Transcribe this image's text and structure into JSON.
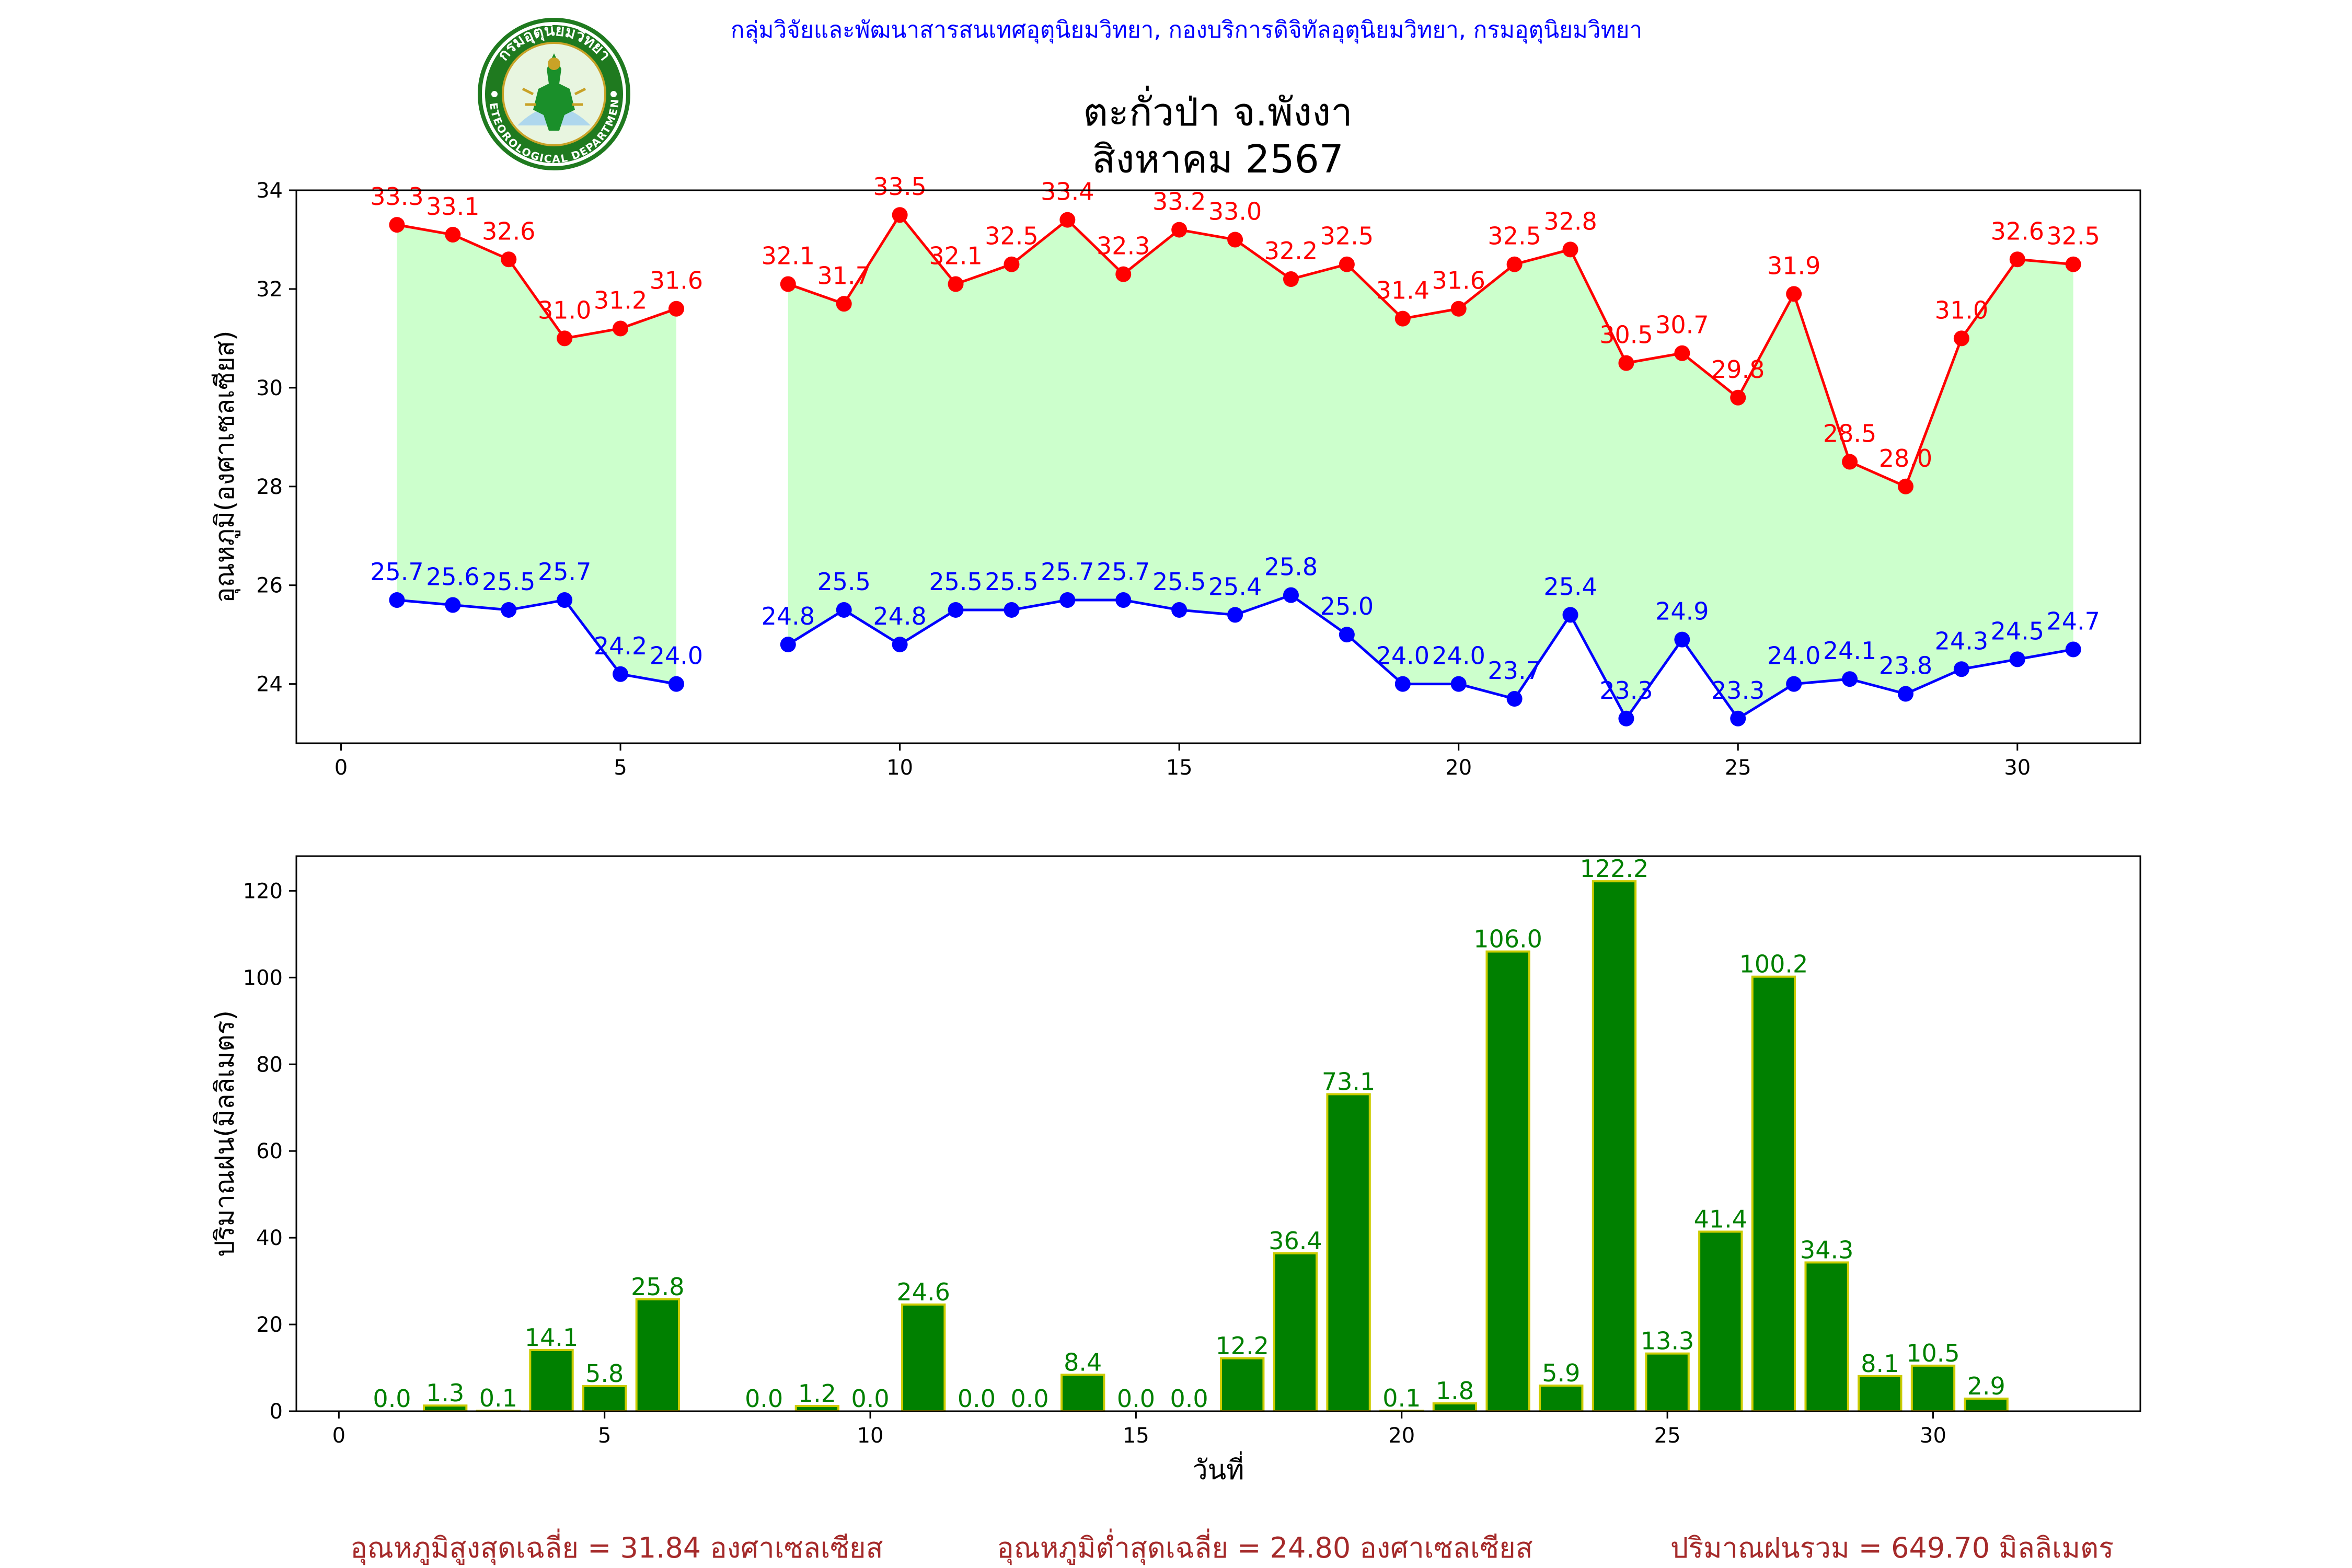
{
  "header": {
    "org_line": "กลุ่มวิจัยและพัฒนาสารสนเทศอุตุนิยมวิทยา, กองบริการดิจิทัลอุตุนิยมวิทยา, กรมอุตุนิยมวิทยา",
    "station": "ตะกั่วป่า จ.พังงา",
    "period": "สิงหาคม 2567",
    "logo": {
      "name": "meteorological-department-seal",
      "top_text": "กรมอุตุนิยมวิทยา",
      "bottom_text": "METEOROLOGICAL DEPARTMENT",
      "colors": {
        "ring": "#1f7a1f",
        "fill": "#e8f5e0",
        "figure": "#1a8f2a",
        "accent": "#c9a227"
      }
    }
  },
  "colors": {
    "max_line": "#ff0000",
    "min_line": "#0000ff",
    "range_fill": "#ccffcc",
    "rain_bar": "#008000",
    "rain_bar_edge": "#cccc00",
    "rain_label": "#008000",
    "footer_text": "#a52a2a",
    "header_text": "#0000ff"
  },
  "chart_data": [
    {
      "type": "line",
      "ylabel": "อุณหภูมิ(องศาเซลเซียส)",
      "xlabel": "",
      "xlim": [
        -0.8,
        32.2
      ],
      "ylim": [
        22.8,
        34.0
      ],
      "xticks": [
        0,
        5,
        10,
        15,
        20,
        25,
        30
      ],
      "yticks": [
        24,
        26,
        28,
        30,
        32,
        34
      ],
      "x": [
        1,
        2,
        3,
        4,
        5,
        6,
        8,
        9,
        10,
        11,
        12,
        13,
        14,
        15,
        16,
        17,
        18,
        19,
        20,
        21,
        22,
        23,
        24,
        25,
        26,
        27,
        28,
        29,
        30,
        31
      ],
      "series": [
        {
          "key": "max",
          "values": [
            33.3,
            33.1,
            32.6,
            31.0,
            31.2,
            31.6,
            32.1,
            31.7,
            33.5,
            32.1,
            32.5,
            33.4,
            32.3,
            33.2,
            33.0,
            32.2,
            32.5,
            31.4,
            31.6,
            32.5,
            32.8,
            30.5,
            30.7,
            29.8,
            31.9,
            28.5,
            28.0,
            31.0,
            32.6,
            32.5
          ]
        },
        {
          "key": "min",
          "values": [
            25.7,
            25.6,
            25.5,
            25.7,
            24.2,
            24.0,
            24.8,
            25.5,
            24.8,
            25.5,
            25.5,
            25.7,
            25.7,
            25.5,
            25.4,
            25.8,
            25.0,
            24.0,
            24.0,
            23.7,
            25.4,
            23.3,
            24.9,
            23.3,
            24.0,
            24.1,
            23.8,
            24.3,
            24.5,
            24.7
          ]
        }
      ],
      "labels": {
        "max": [
          "33.3",
          "33.1",
          "32.6",
          "31.0",
          "31.2",
          "31.6",
          "32.1",
          "31.7",
          "33.5",
          "32.1",
          "32.5",
          "33.4",
          "32.3",
          "33.2",
          "33.0",
          "32.2",
          "32.5",
          "31.4",
          "31.6",
          "32.5",
          "32.8",
          "30.5",
          "30.7",
          "29.8",
          "31.9",
          "28.5",
          "28.0",
          "31.0",
          "32.6",
          "32.5"
        ],
        "min": [
          "25.7",
          "25.6",
          "25.5",
          "25.7",
          "24.2",
          "24.0",
          "24.8",
          "25.5",
          "24.8",
          "25.5",
          "25.5",
          "25.7",
          "25.7",
          "25.5",
          "25.4",
          "25.8",
          "25.0",
          "24.0",
          "24.0",
          "23.7",
          "25.4",
          "23.3",
          "24.9",
          "23.3",
          "24.0",
          "24.1",
          "23.8",
          "24.3",
          "24.5",
          "24.7"
        ]
      }
    },
    {
      "type": "bar",
      "ylabel": "ปริมาณฝน(มิลลิเมตร)",
      "xlabel": "วันที่",
      "xlim": [
        -0.8,
        33.9
      ],
      "ylim": [
        0,
        128
      ],
      "xticks": [
        0,
        5,
        10,
        15,
        20,
        25,
        30
      ],
      "yticks": [
        0,
        20,
        40,
        60,
        80,
        100,
        120
      ],
      "x": [
        1,
        2,
        3,
        4,
        5,
        6,
        8,
        9,
        10,
        11,
        12,
        13,
        14,
        15,
        16,
        17,
        18,
        19,
        20,
        21,
        22,
        23,
        24,
        25,
        26,
        27,
        28,
        29,
        30,
        31
      ],
      "values": [
        0.0,
        1.3,
        0.1,
        14.1,
        5.8,
        25.8,
        0.0,
        1.2,
        0.0,
        24.6,
        0.0,
        0.0,
        8.4,
        0.0,
        0.0,
        12.2,
        36.4,
        73.1,
        0.1,
        1.8,
        106.0,
        5.9,
        122.2,
        13.3,
        41.4,
        100.2,
        34.3,
        8.1,
        10.5,
        2.9
      ],
      "labels": [
        "0.0",
        "1.3",
        "0.1",
        "14.1",
        "5.8",
        "25.8",
        "0.0",
        "1.2",
        "0.0",
        "24.6",
        "0.0",
        "0.0",
        "8.4",
        "0.0",
        "0.0",
        "12.2",
        "36.4",
        "73.1",
        "0.1",
        "1.8",
        "106.0",
        "5.9",
        "122.2",
        "13.3",
        "41.4",
        "100.2",
        "34.3",
        "8.1",
        "10.5",
        "2.9"
      ]
    }
  ],
  "footer": {
    "avg_max": "อุณหภูมิสูงสุดเฉลี่ย = 31.84 องศาเซลเซียส",
    "avg_min": "อุณหภูมิต่ำสุดเฉลี่ย = 24.80 องศาเซลเซียส",
    "total_rain": "ปริมาณฝนรวม = 649.70 มิลลิเมตร"
  }
}
